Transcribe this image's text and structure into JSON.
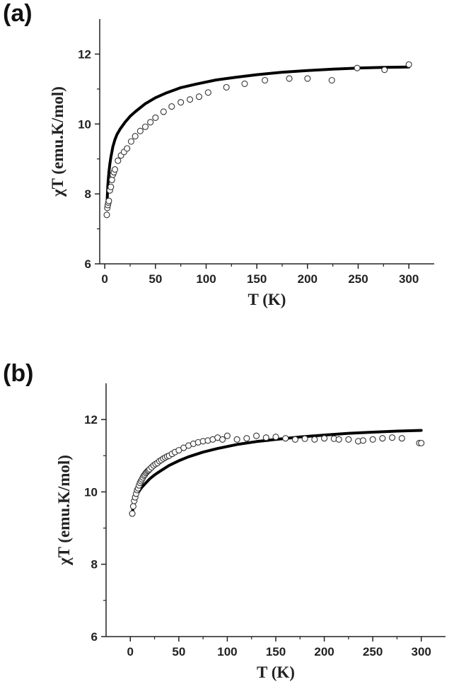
{
  "chart_data": [
    {
      "panel_label": "(a)",
      "type": "scatter",
      "xlabel": "T (K)",
      "ylabel": "χT (emu.K/mol)",
      "xlim": [
        -5,
        325
      ],
      "ylim": [
        6,
        13
      ],
      "xticks": [
        0,
        50,
        100,
        150,
        200,
        250,
        300
      ],
      "yticks": [
        6,
        8,
        10,
        12
      ],
      "grid": false,
      "series": [
        {
          "kind": "markers",
          "marker": "open-circle",
          "x": [
            2,
            2.5,
            3,
            3.5,
            4,
            5,
            6,
            7,
            8,
            9,
            10,
            13,
            16,
            19,
            22,
            26,
            30,
            35,
            40,
            45,
            50,
            58,
            66,
            75,
            84,
            93,
            102,
            120,
            138,
            158,
            182,
            200,
            224,
            249,
            276,
            300
          ],
          "y": [
            7.4,
            7.6,
            7.68,
            7.75,
            7.8,
            8.1,
            8.2,
            8.4,
            8.55,
            8.62,
            8.7,
            8.95,
            9.1,
            9.2,
            9.3,
            9.5,
            9.65,
            9.8,
            9.92,
            10.05,
            10.18,
            10.35,
            10.5,
            10.62,
            10.7,
            10.78,
            10.9,
            11.05,
            11.15,
            11.25,
            11.3,
            11.3,
            11.25,
            11.6,
            11.55,
            11.7
          ]
        },
        {
          "kind": "line",
          "x": [
            2,
            3,
            4,
            5,
            6,
            8,
            10,
            12,
            15,
            20,
            25,
            30,
            40,
            50,
            60,
            75,
            90,
            110,
            130,
            150,
            175,
            200,
            225,
            250,
            275,
            300
          ],
          "y": [
            7.6,
            8.25,
            8.6,
            8.85,
            9.05,
            9.35,
            9.55,
            9.7,
            9.85,
            10.05,
            10.22,
            10.35,
            10.58,
            10.75,
            10.88,
            11.04,
            11.14,
            11.26,
            11.34,
            11.41,
            11.48,
            11.53,
            11.57,
            11.6,
            11.62,
            11.63
          ]
        }
      ]
    },
    {
      "panel_label": "(b)",
      "type": "scatter",
      "xlabel": "T (K)",
      "ylabel": "χT (emu.K/mol)",
      "xlim": [
        -25,
        325
      ],
      "ylim": [
        6,
        13
      ],
      "xticks": [
        0,
        50,
        100,
        150,
        200,
        250,
        300
      ],
      "yticks": [
        6,
        8,
        10,
        12
      ],
      "grid": false,
      "series": [
        {
          "kind": "markers",
          "marker": "open-circle",
          "x": [
            2,
            3,
            4,
            5,
            6,
            7,
            8,
            9,
            10,
            11,
            12,
            13,
            14,
            15,
            16,
            17,
            18,
            19,
            20,
            22,
            24,
            26,
            28,
            30,
            32,
            34,
            36,
            38,
            40,
            43,
            46,
            50,
            55,
            60,
            65,
            70,
            75,
            80,
            85,
            90,
            95,
            100,
            110,
            120,
            130,
            140,
            150,
            160,
            170,
            180,
            190,
            200,
            210,
            215,
            225,
            235,
            240,
            250,
            260,
            270,
            280,
            298,
            300
          ],
          "y": [
            9.4,
            9.6,
            9.75,
            9.85,
            9.95,
            10.05,
            10.1,
            10.18,
            10.25,
            10.3,
            10.35,
            10.4,
            10.45,
            10.48,
            10.52,
            10.55,
            10.58,
            10.6,
            10.63,
            10.68,
            10.73,
            10.77,
            10.8,
            10.85,
            10.88,
            10.92,
            10.95,
            10.98,
            11.0,
            11.05,
            11.1,
            11.15,
            11.22,
            11.28,
            11.33,
            11.37,
            11.4,
            11.42,
            11.45,
            11.5,
            11.45,
            11.55,
            11.45,
            11.48,
            11.55,
            11.5,
            11.52,
            11.48,
            11.45,
            11.47,
            11.45,
            11.48,
            11.47,
            11.45,
            11.45,
            11.4,
            11.42,
            11.45,
            11.48,
            11.5,
            11.48,
            11.35,
            11.35
          ]
        },
        {
          "kind": "line",
          "x": [
            2,
            3,
            4,
            5,
            6,
            8,
            10,
            12,
            15,
            20,
            25,
            30,
            40,
            50,
            60,
            75,
            90,
            110,
            130,
            150,
            175,
            200,
            225,
            250,
            275,
            300
          ],
          "y": [
            9.4,
            9.6,
            9.72,
            9.8,
            9.87,
            9.98,
            10.06,
            10.13,
            10.22,
            10.36,
            10.47,
            10.56,
            10.73,
            10.86,
            10.97,
            11.1,
            11.2,
            11.31,
            11.39,
            11.45,
            11.52,
            11.57,
            11.62,
            11.65,
            11.68,
            11.7
          ]
        }
      ]
    }
  ]
}
